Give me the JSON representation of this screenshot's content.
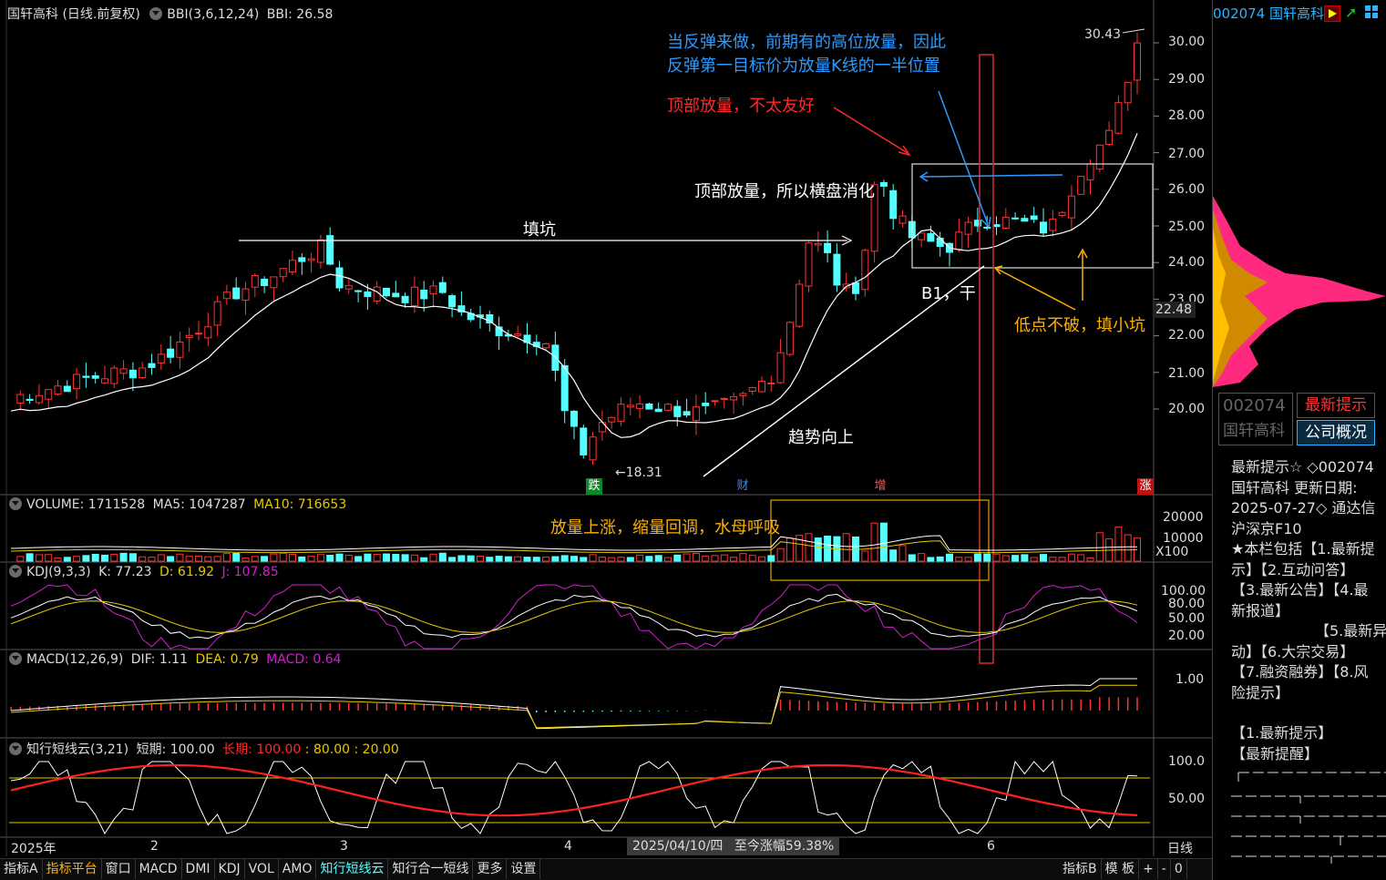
{
  "main": {
    "title": "国轩高科 (日线.前复权)",
    "indicator": "BBI(3,6,12,24)",
    "indicator_value": "BBI: 26.58",
    "price_axis": [
      "30.00",
      "29.00",
      "28.00",
      "27.00",
      "26.00",
      "25.00",
      "24.00",
      "23.00",
      "22.00",
      "21.00",
      "20.00"
    ],
    "current_price": "22.48",
    "high_label": "30.43",
    "low_label": "←18.31",
    "markers": {
      "die": "跌",
      "cai": "财",
      "zeng": "增",
      "zhang": "涨"
    },
    "annotations": {
      "rebound": "当反弹来做，前期有的高位放量，因此\n反弹第一目标价为放量K线的一半位置",
      "top_vol": "顶部放量，不太友好",
      "top_vol_sideways": "顶部放量，所以横盘消化",
      "fill_pit": "填坑",
      "b1": "B1，干",
      "low_hold": "低点不破，填小坑",
      "trend_up": "趋势向上"
    }
  },
  "volume": {
    "label": "VOLUME: 1711528",
    "ma5": "MA5: 1047287",
    "ma10": "MA10: 716653",
    "axis": [
      "20000",
      "10000"
    ],
    "unit": "X100",
    "annotation": "放量上涨，缩量回调，水母呼吸"
  },
  "kdj": {
    "label": "KDJ(9,3,3)",
    "k": "K: 77.23",
    "d": "D: 61.92",
    "j": "J: 107.85",
    "axis": [
      "100.00",
      "80.00",
      "50.00",
      "20.00"
    ]
  },
  "macd": {
    "label": "MACD(12,26,9)",
    "dif": "DIF: 1.11",
    "dea": "DEA: 0.79",
    "macd": "MACD: 0.64",
    "axis": [
      "1.00"
    ]
  },
  "cloud": {
    "label": "知行短线云(3,21)",
    "short": "短期: 100.00",
    "long_label": "长期:",
    "long_val": "100.00",
    "rest": ": 80.00 : 20.00",
    "axis": [
      "100.0",
      "50.00"
    ]
  },
  "time_axis": {
    "year": "2025年",
    "months": [
      "2",
      "3",
      "4",
      "6"
    ],
    "cursor_date": "2025/04/10/四",
    "cursor_change": "至今涨幅59.38%",
    "period": "日线"
  },
  "toolbar": {
    "items": [
      "指标A",
      "指标平台",
      "窗口",
      "MACD",
      "DMI",
      "KDJ",
      "VOL",
      "AMO",
      "知行短线云",
      "知行合一短线",
      "更多",
      "设置"
    ],
    "right_items": [
      "指标B",
      "模 板",
      "+",
      "-",
      "0"
    ]
  },
  "sidebar": {
    "code": "002074",
    "name": "国轩高科",
    "box_code": "002074",
    "box_name": "国轩高科",
    "btn_news": "最新提示",
    "btn_profile": "公司概况",
    "text_lines": [
      "最新提示☆ ◇002074",
      "国轩高科 更新日期:",
      "2025-07-27◇ 通达信",
      "沪深京F10",
      "★本栏包括【1.最新提",
      "示】【2.互动问答】",
      "【3.最新公告】【4.最",
      "新报道】",
      "【5.最新异",
      "动】【6.大宗交易】",
      "【7.融资融券】【8.风",
      "险提示】",
      "",
      "【1.最新提示】",
      "【最新提醒】"
    ]
  },
  "colors": {
    "up": "#ff3333",
    "down": "#54ffff",
    "ma_line": "#ffffff",
    "yellow": "#e8c800",
    "magenta": "#d020d0",
    "blue_annot": "#2b9bff",
    "orange_annot": "#ffb000",
    "red_annot": "#ff2a2a"
  }
}
